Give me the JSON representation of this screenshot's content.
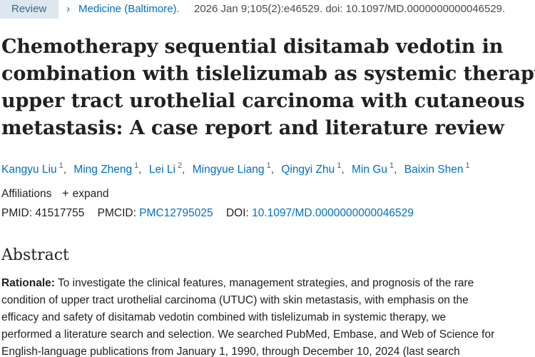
{
  "header": {
    "badge": "Review",
    "chevron": "›",
    "journal": "Medicine (Baltimore).",
    "citation": "2026 Jan 9;105(2):e46529. doi: 10.1097/MD.0000000000046529."
  },
  "article": {
    "title_lines": [
      "Chemotherapy sequential disitamab vedotin in",
      "combination with tislelizumab as systemic therapy of",
      "upper tract urothelial carcinoma with cutaneous",
      "metastasis: A case report and literature review"
    ],
    "authors": [
      {
        "name": "Kangyu Liu",
        "aff": "1"
      },
      {
        "name": "Ming Zheng",
        "aff": "1"
      },
      {
        "name": "Lei Li",
        "aff": "2"
      },
      {
        "name": "Mingyue Liang",
        "aff": "1"
      },
      {
        "name": "Qingyi Zhu",
        "aff": "1"
      },
      {
        "name": "Min Gu",
        "aff": "1"
      },
      {
        "name": "Baixin Shen",
        "aff": "1"
      }
    ],
    "affiliations_label": "Affiliations",
    "expand_label": "expand",
    "ids": {
      "pmid_label": "PMID:",
      "pmid": "41517755",
      "pmcid_label": "PMCID:",
      "pmcid": "PMC12795025",
      "doi_label": "DOI:",
      "doi": "10.1097/MD.0000000000046529"
    }
  },
  "abstract": {
    "heading": "Abstract",
    "rationale_label": "Rationale:",
    "lines": [
      " To investigate the clinical features, management strategies, and prognosis of the rare",
      "condition of upper tract urothelial carcinoma (UTUC) with skin metastasis, with emphasis on the",
      "efficacy and safety of disitamab vedotin combined with tislelizumab in systemic therapy, we",
      "performed a literature search and selection. We searched PubMed, Embase, and Web of Science for",
      "English-language publications from January 1, 1990, through December 10, 2024 (last search"
    ]
  },
  "colors": {
    "link": "#0071bc",
    "badge_bg": "#dde7ef",
    "text": "#212121"
  }
}
